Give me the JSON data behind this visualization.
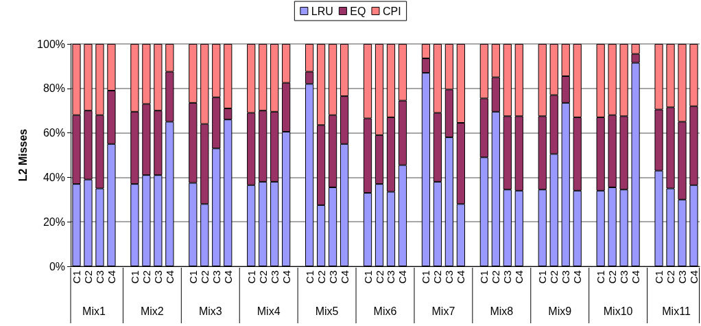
{
  "chart_data": {
    "type": "bar",
    "stacked": true,
    "ylabel": "L2 Misses",
    "categories": [
      "C1",
      "C2",
      "C3",
      "C4",
      null,
      "C1",
      "C2",
      "C3",
      "C4",
      null,
      "C1",
      "C2",
      "C3",
      "C4",
      null,
      "C1",
      "C2",
      "C3",
      "C4",
      null,
      "C1",
      "C2",
      "C3",
      "C4",
      null,
      "C1",
      "C2",
      "C3",
      "C4",
      null,
      "C1",
      "C2",
      "C3",
      "C4",
      null,
      "C1",
      "C2",
      "C3",
      "C4",
      null,
      "C1",
      "C2",
      "C3",
      "C4",
      null,
      "C1",
      "C2",
      "C3",
      "C4",
      null,
      "C1",
      "C2",
      "C3",
      "C4"
    ],
    "series": [
      {
        "name": "LRU",
        "color": "#9999ff",
        "values": [
          37,
          39,
          35,
          55,
          null,
          37,
          41,
          41,
          65,
          null,
          37.5,
          28,
          53,
          66,
          null,
          36.5,
          38,
          38,
          60.5,
          null,
          82,
          27.5,
          35.5,
          55,
          null,
          33,
          37,
          33.5,
          45.5,
          null,
          87,
          38,
          58,
          28,
          null,
          49,
          69.5,
          34.5,
          34,
          null,
          34.5,
          50.5,
          73.5,
          34,
          null,
          34,
          35.5,
          34.5,
          91.5,
          null,
          43,
          35,
          30,
          36.5
        ]
      },
      {
        "name": "EQ",
        "color": "#993366",
        "values": [
          31,
          31,
          33,
          24,
          null,
          32.5,
          32,
          29,
          22.5,
          null,
          36,
          36,
          23,
          5,
          null,
          32.5,
          32,
          31.5,
          22,
          null,
          5.5,
          36,
          32.5,
          21.5,
          null,
          33.5,
          22,
          33.5,
          29,
          null,
          6.5,
          31,
          21.5,
          36.5,
          null,
          26.5,
          15.5,
          33,
          33.5,
          null,
          33,
          26.5,
          12,
          33,
          null,
          33,
          32.5,
          33,
          4,
          null,
          27.5,
          36.5,
          35,
          35.5
        ]
      },
      {
        "name": "CPI",
        "color": "#ff8080",
        "values": [
          32,
          30,
          32,
          21,
          null,
          30.5,
          27,
          30,
          12.5,
          null,
          26.5,
          36,
          24,
          29,
          null,
          31,
          30,
          30.5,
          17.5,
          null,
          12.5,
          36.5,
          32,
          23.5,
          null,
          33.5,
          41,
          33,
          25.5,
          null,
          6.5,
          31,
          20.5,
          35.5,
          null,
          24.5,
          15,
          32.5,
          32.5,
          null,
          32.5,
          23,
          14.5,
          33,
          null,
          33,
          32,
          32.5,
          4.5,
          null,
          29.5,
          28.5,
          35,
          28
        ]
      }
    ],
    "ylim": [
      0,
      100
    ],
    "yticks": [
      {
        "value": 0,
        "label": "0%"
      },
      {
        "value": 20,
        "label": "20%"
      },
      {
        "value": 40,
        "label": "40%"
      },
      {
        "value": 60,
        "label": "60%"
      },
      {
        "value": 80,
        "label": "80%"
      },
      {
        "value": 100,
        "label": "100%"
      }
    ],
    "grid": "y",
    "legend": "top",
    "annotations": [
      "Mix1",
      "Mix2",
      "Mix3",
      "Mix4",
      "Mix5",
      "Mix6",
      "Mix7",
      "Mix8",
      "Mix9",
      "Mix10",
      "Mix11"
    ]
  }
}
